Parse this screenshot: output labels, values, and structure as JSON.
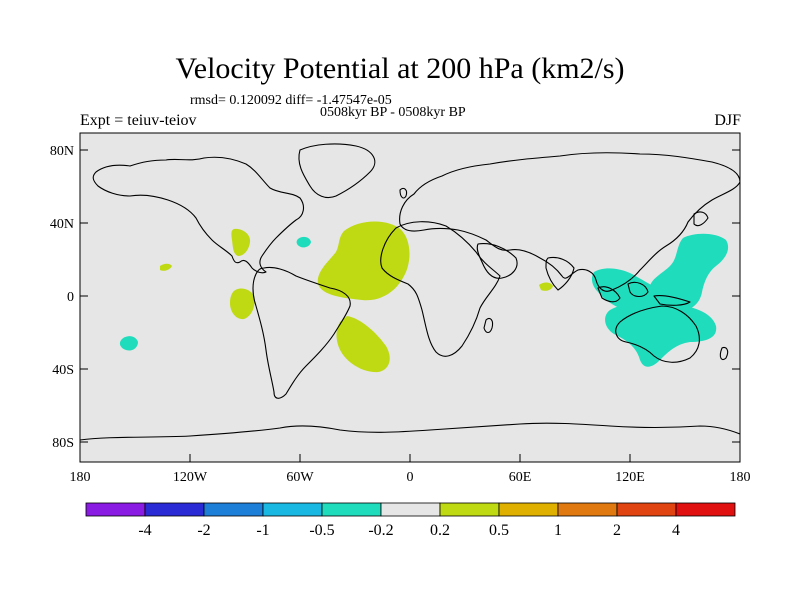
{
  "header": {
    "title": "Velocity Potential at 200 hPa (km2/s)",
    "stats": "rmsd= 0.120092 diff= -1.47547e-05",
    "period": "0508kyr BP - 0508kyr BP",
    "experiment": "Expt = teiuv-teiov",
    "season": "DJF"
  },
  "map": {
    "lat_labels": [
      "80N",
      "40N",
      "0",
      "40S",
      "80S"
    ],
    "lon_labels": [
      "180",
      "120W",
      "60W",
      "0",
      "60E",
      "120E",
      "180"
    ],
    "background_color": "#e6e6e6"
  },
  "colorbar": {
    "colors": [
      "#8a1be3",
      "#2b2bd6",
      "#1e7fd9",
      "#19b8e2",
      "#1fdcbc",
      "#e6e6e6",
      "#bfd912",
      "#e0b000",
      "#e07a10",
      "#e04410",
      "#e01010"
    ],
    "labels": [
      "-4",
      "-2",
      "-1",
      "-0.5",
      "-0.2",
      "0.2",
      "0.5",
      "1",
      "2",
      "4"
    ]
  },
  "anomaly_regions": [
    {
      "name": "tropical-atlantic",
      "category": "0.2 to 0.5",
      "color": "#bfd912"
    },
    {
      "name": "south-atlantic",
      "category": "0.2 to 0.5",
      "color": "#bfd912"
    },
    {
      "name": "gulf-of-mexico",
      "category": "0.2 to 0.5",
      "color": "#bfd912"
    },
    {
      "name": "east-pacific",
      "category": "0.2 to 0.5",
      "color": "#bfd912"
    },
    {
      "name": "central-pacific",
      "category": "0.2 to 0.5",
      "color": "#bfd912"
    },
    {
      "name": "indian-ocean",
      "category": "0.2 to 0.5",
      "color": "#bfd912"
    },
    {
      "name": "west-pacific",
      "category": "-0.5 to -0.2",
      "color": "#1fdcbc"
    },
    {
      "name": "maritime-continent",
      "category": "-0.5 to -0.2",
      "color": "#1fdcbc"
    },
    {
      "name": "australia",
      "category": "-0.5 to -0.2",
      "color": "#1fdcbc"
    },
    {
      "name": "south-pacific",
      "category": "-0.5 to -0.2",
      "color": "#1fdcbc"
    },
    {
      "name": "atlantic-small",
      "category": "-0.5 to -0.2",
      "color": "#1fdcbc"
    }
  ]
}
